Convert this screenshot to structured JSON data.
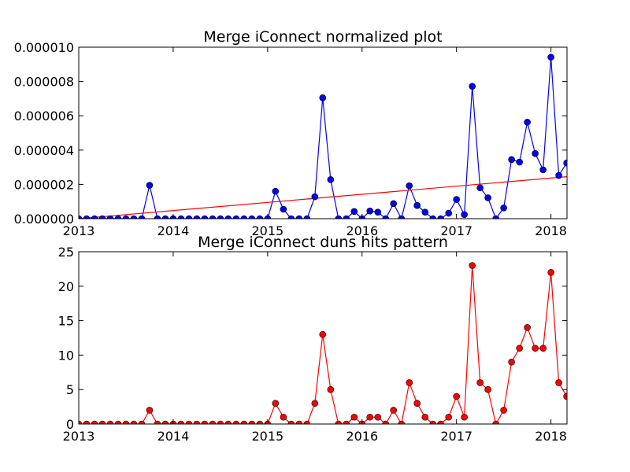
{
  "chart_data": [
    {
      "type": "line",
      "title": "Merge iConnect normalized plot",
      "xlabel": "",
      "ylabel": "",
      "x_tick_labels": [
        "2013",
        "2014",
        "2015",
        "2016",
        "2017",
        "2018"
      ],
      "x_ticks": [
        2013,
        2014,
        2015,
        2016,
        2017,
        2018
      ],
      "xlim": [
        2013.0,
        2018.17
      ],
      "y_tick_labels": [
        "0.000000",
        "0.000002",
        "0.000004",
        "0.000006",
        "0.000008",
        "0.000010"
      ],
      "y_ticks": [
        0,
        2e-06,
        4e-06,
        6e-06,
        8e-06,
        1e-05
      ],
      "ylim": [
        0,
        1e-05
      ],
      "grid": false,
      "colors": {
        "series": "#0000ff",
        "trend": "#ff0000"
      },
      "series": [
        {
          "marker": "circle",
          "x": [
            2013.0,
            2013.083,
            2013.167,
            2013.25,
            2013.333,
            2013.417,
            2013.5,
            2013.583,
            2013.667,
            2013.75,
            2013.833,
            2013.917,
            2014.0,
            2014.083,
            2014.167,
            2014.25,
            2014.333,
            2014.417,
            2014.5,
            2014.583,
            2014.667,
            2014.75,
            2014.833,
            2014.917,
            2015.0,
            2015.083,
            2015.167,
            2015.25,
            2015.333,
            2015.417,
            2015.5,
            2015.583,
            2015.667,
            2015.75,
            2015.833,
            2015.917,
            2016.0,
            2016.083,
            2016.167,
            2016.25,
            2016.333,
            2016.417,
            2016.5,
            2016.583,
            2016.667,
            2016.75,
            2016.833,
            2016.917,
            2017.0,
            2017.083,
            2017.167,
            2017.25,
            2017.333,
            2017.417,
            2017.5,
            2017.583,
            2017.667,
            2017.75,
            2017.833,
            2017.917,
            2018.0,
            2018.083,
            2018.167
          ],
          "y": [
            0,
            0,
            0,
            0,
            0,
            0,
            0,
            0,
            0,
            1.95e-06,
            0,
            0,
            0,
            0,
            0,
            0,
            0,
            0,
            0,
            0,
            0,
            0,
            0,
            0,
            0,
            1.6e-06,
            5.5e-07,
            0,
            0,
            0,
            1.28e-06,
            7.05e-06,
            2.28e-06,
            0,
            0,
            4.2e-07,
            0,
            4.5e-07,
            3.8e-07,
            0,
            8.8e-07,
            0,
            1.92e-06,
            7.7e-07,
            3.8e-07,
            0,
            0,
            3.2e-07,
            1.12e-06,
            2.4e-07,
            7.72e-06,
            1.8e-06,
            1.22e-06,
            0,
            6.3e-07,
            3.45e-06,
            3.3e-06,
            5.63e-06,
            3.8e-06,
            2.85e-06,
            9.42e-06,
            2.52e-06,
            3.25e-06
          ]
        },
        {
          "style": "trend-line",
          "x": [
            2013.0,
            2018.167
          ],
          "y": [
            0,
            2.45e-06
          ]
        }
      ]
    },
    {
      "type": "line",
      "title": "Merge iConnect duns hits pattern",
      "xlabel": "",
      "ylabel": "",
      "x_tick_labels": [
        "2013",
        "2014",
        "2015",
        "2016",
        "2017",
        "2018"
      ],
      "x_ticks": [
        2013,
        2014,
        2015,
        2016,
        2017,
        2018
      ],
      "xlim": [
        2013.0,
        2018.17
      ],
      "y_tick_labels": [
        "0",
        "5",
        "10",
        "15",
        "20",
        "25"
      ],
      "y_ticks": [
        0,
        5,
        10,
        15,
        20,
        25
      ],
      "ylim": [
        0,
        25
      ],
      "grid": false,
      "colors": {
        "series": "#ff0000"
      },
      "series": [
        {
          "marker": "circle",
          "x": [
            2013.0,
            2013.083,
            2013.167,
            2013.25,
            2013.333,
            2013.417,
            2013.5,
            2013.583,
            2013.667,
            2013.75,
            2013.833,
            2013.917,
            2014.0,
            2014.083,
            2014.167,
            2014.25,
            2014.333,
            2014.417,
            2014.5,
            2014.583,
            2014.667,
            2014.75,
            2014.833,
            2014.917,
            2015.0,
            2015.083,
            2015.167,
            2015.25,
            2015.333,
            2015.417,
            2015.5,
            2015.583,
            2015.667,
            2015.75,
            2015.833,
            2015.917,
            2016.0,
            2016.083,
            2016.167,
            2016.25,
            2016.333,
            2016.417,
            2016.5,
            2016.583,
            2016.667,
            2016.75,
            2016.833,
            2016.917,
            2017.0,
            2017.083,
            2017.167,
            2017.25,
            2017.333,
            2017.417,
            2017.5,
            2017.583,
            2017.667,
            2017.75,
            2017.833,
            2017.917,
            2018.0,
            2018.083,
            2018.167
          ],
          "y": [
            0,
            0,
            0,
            0,
            0,
            0,
            0,
            0,
            0,
            2,
            0,
            0,
            0,
            0,
            0,
            0,
            0,
            0,
            0,
            0,
            0,
            0,
            0,
            0,
            0,
            3,
            1,
            0,
            0,
            0,
            3,
            13,
            5,
            0,
            0,
            1,
            0,
            1,
            1,
            0,
            2,
            0,
            6,
            3,
            1,
            0,
            0,
            1,
            4,
            1,
            23,
            6,
            5,
            0,
            2,
            9,
            11,
            14,
            11,
            11,
            22,
            6,
            4
          ]
        }
      ]
    }
  ]
}
